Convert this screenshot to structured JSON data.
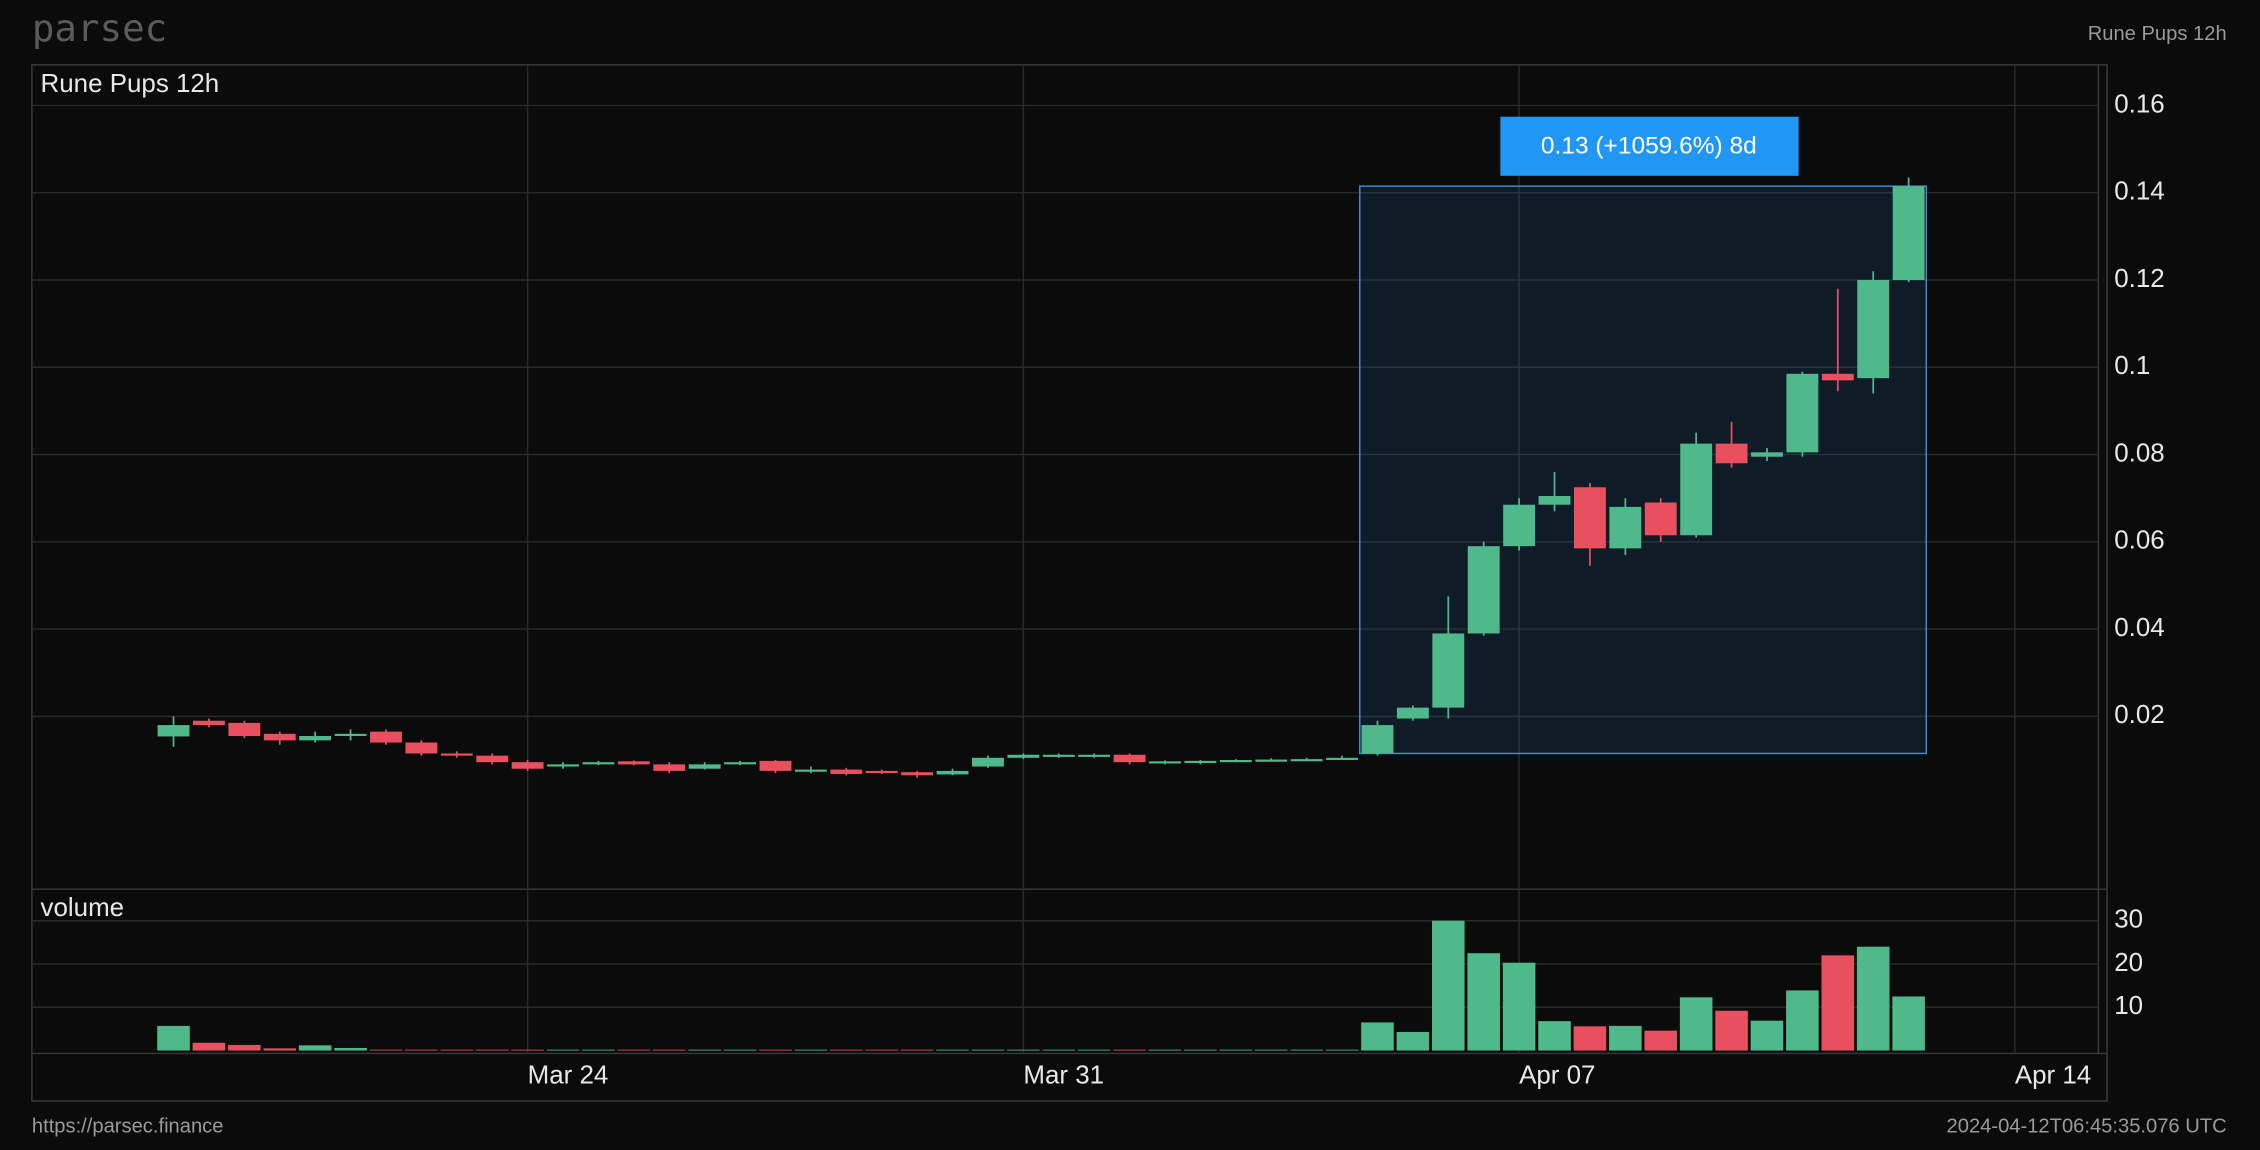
{
  "app_name": "parsec",
  "header_right": "Rune Pups 12h",
  "footer_left": "https://parsec.finance",
  "footer_right": "2024-04-12T06:45:35.076 UTC",
  "chart_data": {
    "type": "candlestick",
    "title": "Rune Pups 12h",
    "annotation": "0.13 (+1059.6%) 8d",
    "up_color": "#4fb98b",
    "down_color": "#e8505f",
    "grid": true,
    "categories": [
      null,
      null,
      null,
      null,
      null,
      null,
      null,
      null,
      null,
      null,
      null,
      null,
      null,
      null,
      null,
      null,
      null,
      null,
      null,
      null,
      null,
      null,
      null,
      null,
      null,
      null,
      null,
      null,
      null,
      null,
      null,
      null,
      null,
      null,
      null,
      null,
      null,
      null,
      null,
      null,
      null,
      null,
      null,
      null,
      null,
      null,
      null,
      null,
      null,
      null
    ],
    "open": [
      0.0154,
      0.019,
      0.0185,
      0.016,
      0.0145,
      0.0155,
      0.0165,
      0.014,
      0.0115,
      0.011,
      0.0095,
      0.0085,
      0.009,
      0.0097,
      0.009,
      0.008,
      0.009,
      0.0098,
      0.0075,
      0.0078,
      0.0075,
      0.0072,
      0.0067,
      0.0085,
      0.0105,
      0.011,
      0.011,
      0.0112,
      0.0095,
      0.0095,
      0.0098,
      0.01,
      0.01,
      0.0102,
      0.0115,
      0.0195,
      0.022,
      0.039,
      0.059,
      0.0685,
      0.0725,
      0.0585,
      0.069,
      0.0615,
      0.0825,
      0.0795,
      0.0805,
      0.0985,
      0.0975,
      0.12
    ],
    "high": [
      0.02,
      0.0195,
      0.019,
      0.0165,
      0.0165,
      0.017,
      0.017,
      0.0145,
      0.012,
      0.0115,
      0.01,
      0.0095,
      0.0098,
      0.0099,
      0.0095,
      0.0095,
      0.0098,
      0.01,
      0.0085,
      0.0082,
      0.0078,
      0.0075,
      0.008,
      0.011,
      0.0115,
      0.0115,
      0.0115,
      0.0115,
      0.0099,
      0.01,
      0.0102,
      0.0104,
      0.0105,
      0.011,
      0.019,
      0.0225,
      0.0475,
      0.06,
      0.07,
      0.076,
      0.0735,
      0.07,
      0.07,
      0.085,
      0.0875,
      0.0815,
      0.099,
      0.118,
      0.122,
      0.1435
    ],
    "low": [
      0.013,
      0.0175,
      0.015,
      0.0135,
      0.014,
      0.0145,
      0.0135,
      0.011,
      0.0105,
      0.009,
      0.0075,
      0.008,
      0.0088,
      0.0088,
      0.007,
      0.0078,
      0.0088,
      0.007,
      0.007,
      0.0065,
      0.0068,
      0.006,
      0.0065,
      0.0082,
      0.0102,
      0.0105,
      0.0105,
      0.009,
      0.009,
      0.009,
      0.0095,
      0.0098,
      0.0098,
      0.01,
      0.011,
      0.019,
      0.0195,
      0.0385,
      0.058,
      0.067,
      0.0545,
      0.057,
      0.06,
      0.061,
      0.077,
      0.0785,
      0.0795,
      0.0945,
      0.094,
      0.1195
    ],
    "close": [
      0.018,
      0.018,
      0.0155,
      0.0145,
      0.0155,
      0.016,
      0.014,
      0.0115,
      0.011,
      0.0095,
      0.008,
      0.009,
      0.0095,
      0.009,
      0.0075,
      0.009,
      0.0095,
      0.0075,
      0.0078,
      0.0068,
      0.007,
      0.0065,
      0.0075,
      0.0105,
      0.0112,
      0.0112,
      0.0112,
      0.0095,
      0.0097,
      0.0098,
      0.01,
      0.0101,
      0.0102,
      0.0105,
      0.018,
      0.022,
      0.039,
      0.059,
      0.0685,
      0.0705,
      0.0585,
      0.068,
      0.0615,
      0.0825,
      0.078,
      0.0805,
      0.0985,
      0.097,
      0.12,
      0.1415
    ],
    "xlim": [
      -4,
      54.36
    ],
    "xticks": [
      {
        "value": 10,
        "label": "Mar 24"
      },
      {
        "value": 24,
        "label": "Mar 31"
      },
      {
        "value": 38,
        "label": "Apr 07"
      },
      {
        "value": 52,
        "label": "Apr 14"
      }
    ],
    "ylim": [
      -0.0196,
      0.1693
    ],
    "yticks": [
      0.02,
      0.04,
      0.06,
      0.08,
      0.1,
      0.12,
      0.14,
      0.16
    ],
    "volume": {
      "type": "bar",
      "label": "volume",
      "values": [
        5.7,
        1.8,
        1.3,
        0.5,
        1.2,
        0.6,
        0.2,
        0.2,
        0.2,
        0.2,
        0.2,
        0.2,
        0.2,
        0.2,
        0.2,
        0.2,
        0.2,
        0.2,
        0.2,
        0.2,
        0.2,
        0.2,
        0.2,
        0.2,
        0.2,
        0.2,
        0.2,
        0.2,
        0.2,
        0.2,
        0.2,
        0.2,
        0.2,
        0.2,
        6.5,
        4.3,
        30,
        22.5,
        20.3,
        6.8,
        5.6,
        5.7,
        4.6,
        12.3,
        9.2,
        6.9,
        13.9,
        22,
        24,
        12.5
      ],
      "ylim": [
        -0.67,
        37.3
      ],
      "yticks": [
        10,
        20,
        30
      ]
    }
  }
}
